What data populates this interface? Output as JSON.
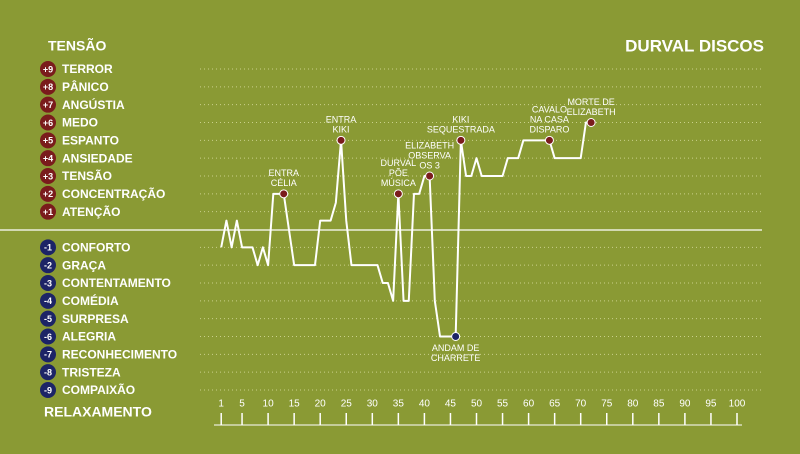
{
  "chart_data": {
    "type": "line",
    "title": "DURVAL DISCOS",
    "y_top_label": "TENSÃO",
    "y_bottom_label": "RELAXAMENTO",
    "xlim": [
      0,
      100
    ],
    "ylim": [
      -9,
      9
    ],
    "xticks": [
      1,
      5,
      10,
      15,
      20,
      25,
      30,
      35,
      40,
      45,
      50,
      55,
      60,
      65,
      70,
      75,
      80,
      85,
      90,
      95,
      100
    ],
    "yticks": [
      {
        "value": 9,
        "label": "+9",
        "name": "TERROR"
      },
      {
        "value": 8,
        "label": "+8",
        "name": "PÂNICO"
      },
      {
        "value": 7,
        "label": "+7",
        "name": "ANGÚSTIA"
      },
      {
        "value": 6,
        "label": "+6",
        "name": "MEDO"
      },
      {
        "value": 5,
        "label": "+5",
        "name": "ESPANTO"
      },
      {
        "value": 4,
        "label": "+4",
        "name": "ANSIEDADE"
      },
      {
        "value": 3,
        "label": "+3",
        "name": "TENSÃO"
      },
      {
        "value": 2,
        "label": "+2",
        "name": "CONCENTRAÇÃO"
      },
      {
        "value": 1,
        "label": "+1",
        "name": "ATENÇÃO"
      },
      {
        "value": -1,
        "label": "-1",
        "name": "CONFORTO"
      },
      {
        "value": -2,
        "label": "-2",
        "name": "GRAÇA"
      },
      {
        "value": -3,
        "label": "-3",
        "name": "CONTENTAMENTO"
      },
      {
        "value": -4,
        "label": "-4",
        "name": "COMÉDIA"
      },
      {
        "value": -5,
        "label": "-5",
        "name": "SURPRESA"
      },
      {
        "value": -6,
        "label": "-6",
        "name": "ALEGRIA"
      },
      {
        "value": -7,
        "label": "-7",
        "name": "RECONHECIMENTO"
      },
      {
        "value": -8,
        "label": "-8",
        "name": "TRISTEZA"
      },
      {
        "value": -9,
        "label": "-9",
        "name": "COMPAIXÃO"
      }
    ],
    "positive_color": "#7a1c1c",
    "negative_color": "#1c2466",
    "line_color": "#ffffff",
    "x": [
      1,
      2,
      3,
      4,
      5,
      6,
      7,
      8,
      9,
      10,
      11,
      12,
      13,
      14,
      15,
      16,
      17,
      18,
      19,
      20,
      21,
      22,
      23,
      24,
      25,
      26,
      27,
      28,
      29,
      30,
      31,
      32,
      33,
      34,
      35,
      36,
      37,
      38,
      39,
      40,
      41,
      42,
      43,
      44,
      45,
      46,
      47,
      48,
      49,
      50,
      51,
      52,
      53,
      54,
      55,
      56,
      57,
      58,
      59,
      60,
      61,
      62,
      63,
      64,
      65,
      66,
      67,
      68,
      69,
      70,
      71,
      72
    ],
    "values": [
      -1,
      0.5,
      -1,
      0.5,
      -1,
      -1,
      -1,
      -2,
      -1,
      -2,
      2,
      2,
      2,
      0,
      -2,
      -2,
      -2,
      -2,
      -2,
      0.5,
      0.5,
      0.5,
      1.5,
      5,
      0.5,
      -2,
      -2,
      -2,
      -2,
      -2,
      -2,
      -3,
      -3,
      -4,
      2,
      -4,
      -4,
      2,
      2,
      3,
      3,
      -4,
      -6,
      -6,
      -6,
      -6,
      5,
      3,
      3,
      4,
      3,
      3,
      3,
      3,
      3,
      4,
      4,
      4,
      5,
      5,
      5,
      5,
      5,
      5,
      4,
      4,
      4,
      4,
      4,
      4,
      6,
      6
    ],
    "annotations": [
      {
        "lines": [
          "ENTRA",
          "CÉLIA"
        ],
        "x": 13,
        "y": 2,
        "color": "#7a1c1c"
      },
      {
        "lines": [
          "ENTRA",
          "KIKI"
        ],
        "x": 24,
        "y": 5,
        "color": "#7a1c1c"
      },
      {
        "lines": [
          "DURVAL",
          "PÕE",
          "MÚSICA"
        ],
        "x": 35,
        "y": 2,
        "color": "#7a1c1c"
      },
      {
        "lines": [
          "ELIZABETH",
          "OBSERVA",
          "OS 3"
        ],
        "x": 41,
        "y": 3,
        "color": "#7a1c1c"
      },
      {
        "lines": [
          "ANDAM DE",
          "CHARRETE"
        ],
        "x": 46,
        "y": -6,
        "color": "#1c2466"
      },
      {
        "lines": [
          "KIKI",
          "SEQUESTRADA"
        ],
        "x": 47,
        "y": 5,
        "color": "#7a1c1c"
      },
      {
        "lines": [
          "CAVALO",
          "NA CASA",
          "DISPARO"
        ],
        "x": 64,
        "y": 5,
        "color": "#7a1c1c"
      },
      {
        "lines": [
          "MORTE DE",
          "ELIZABETH"
        ],
        "x": 72,
        "y": 6,
        "color": "#7a1c1c"
      }
    ]
  }
}
